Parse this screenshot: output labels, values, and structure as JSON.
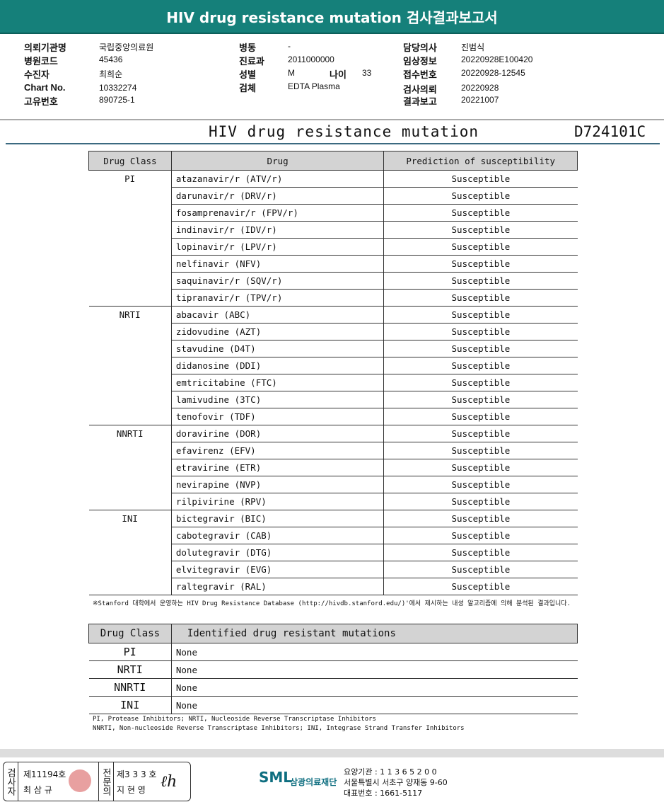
{
  "title": "HIV drug resistance mutation 검사결과보고서",
  "info": {
    "col1": [
      [
        "의뢰기관명",
        "국립중앙의료원"
      ],
      [
        "병원코드",
        "45436"
      ],
      [
        "수진자",
        "최희순"
      ],
      [
        "Chart No.",
        "10332274"
      ],
      [
        "고유번호",
        "890725-1"
      ]
    ],
    "col2": [
      [
        "병동",
        "-"
      ],
      [
        "진료과",
        "2011000000"
      ],
      [
        "성별",
        "M"
      ],
      [
        "검체",
        "EDTA Plasma"
      ]
    ],
    "age_label": "나이",
    "age": "33",
    "col3": [
      [
        "담당의사",
        "진범식"
      ],
      [
        "임상정보",
        "20220928E100420"
      ],
      [
        "접수번호",
        "20220928-12545"
      ],
      [
        "검사의뢰",
        "20220928"
      ],
      [
        "결과보고",
        "20221007"
      ]
    ]
  },
  "subtitle": "HIV drug resistance mutation",
  "code": "D724101C",
  "table1": {
    "headers": [
      "Drug Class",
      "Drug",
      "Prediction of susceptibility"
    ],
    "groups": [
      {
        "class": "PI",
        "drugs": [
          [
            "atazanavir/r (ATV/r)",
            "Susceptible"
          ],
          [
            "darunavir/r (DRV/r)",
            "Susceptible"
          ],
          [
            "fosamprenavir/r (FPV/r)",
            "Susceptible"
          ],
          [
            "indinavir/r (IDV/r)",
            "Susceptible"
          ],
          [
            "lopinavir/r (LPV/r)",
            "Susceptible"
          ],
          [
            "nelfinavir (NFV)",
            "Susceptible"
          ],
          [
            "saquinavir/r (SQV/r)",
            "Susceptible"
          ],
          [
            "tipranavir/r (TPV/r)",
            "Susceptible"
          ]
        ]
      },
      {
        "class": "NRTI",
        "drugs": [
          [
            "abacavir (ABC)",
            "Susceptible"
          ],
          [
            "zidovudine (AZT)",
            "Susceptible"
          ],
          [
            "stavudine (D4T)",
            "Susceptible"
          ],
          [
            "didanosine (DDI)",
            "Susceptible"
          ],
          [
            "emtricitabine (FTC)",
            "Susceptible"
          ],
          [
            "lamivudine (3TC)",
            "Susceptible"
          ],
          [
            "tenofovir (TDF)",
            "Susceptible"
          ]
        ]
      },
      {
        "class": "NNRTI",
        "drugs": [
          [
            "doravirine (DOR)",
            "Susceptible"
          ],
          [
            "efavirenz (EFV)",
            "Susceptible"
          ],
          [
            "etravirine (ETR)",
            "Susceptible"
          ],
          [
            "nevirapine (NVP)",
            "Susceptible"
          ],
          [
            "rilpivirine (RPV)",
            "Susceptible"
          ]
        ]
      },
      {
        "class": "INI",
        "drugs": [
          [
            "bictegravir (BIC)",
            "Susceptible"
          ],
          [
            "cabotegravir (CAB)",
            "Susceptible"
          ],
          [
            "dolutegravir (DTG)",
            "Susceptible"
          ],
          [
            "elvitegravir (EVG)",
            "Susceptible"
          ],
          [
            "raltegravir (RAL)",
            "Susceptible"
          ]
        ]
      }
    ]
  },
  "footnote": "※Stanford 대학에서 운영하는 HIV Drug Resistance Database (http://hivdb.stanford.edu/)'에서 제시하는 내성 알고리즘에 의해 분석된 결과입니다.",
  "table2": {
    "headers": [
      "Drug Class",
      "Identified drug resistant mutations"
    ],
    "rows": [
      [
        "PI",
        "None"
      ],
      [
        "NRTI",
        "None"
      ],
      [
        "NNRTI",
        "None"
      ],
      [
        "INI",
        "None"
      ]
    ]
  },
  "abbrev": [
    "PI, Protease Inhibitors; NRTI, Nucleoside Reverse Transcriptase Inhibitors",
    "NNRTI, Non-nucleoside Reverse Transcriptase Inhibitors; INI, Integrase Strand Transfer Inhibitors"
  ],
  "signature": {
    "label1": "검사자",
    "no1": "제11194호",
    "name1": "최 삼 규",
    "label2": "전문의",
    "no2": "제3 3 3 호",
    "name2": "지 현 영"
  },
  "org": {
    "logo": "SML",
    "name": "삼광의료재단",
    "lines": [
      "요양기관 : 1 1 3 6 5 2 0 0",
      "서울특별시 서초구 양재동 9-60",
      "대표번호 : 1661-5117"
    ]
  },
  "colors": {
    "title_bar": "#15807a",
    "header_bg": "#d3d3d3"
  }
}
